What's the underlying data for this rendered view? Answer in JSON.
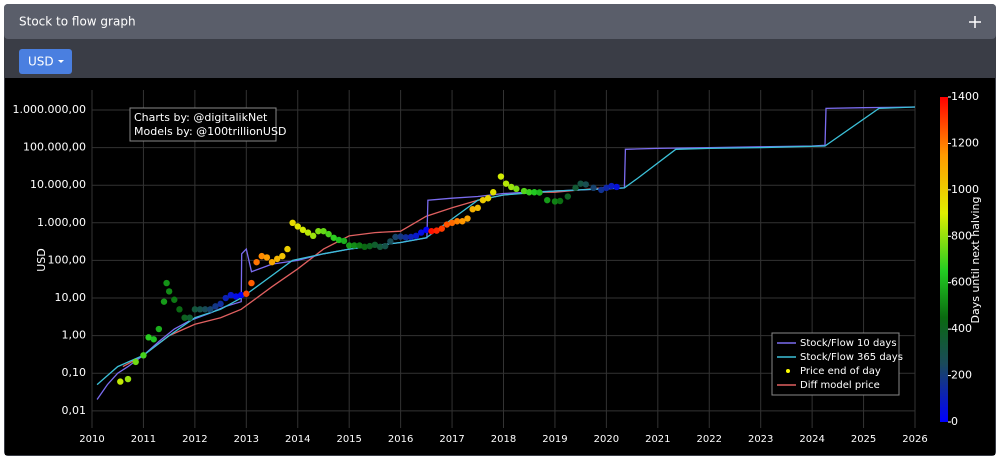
{
  "panel": {
    "title": "Stock to flow graph",
    "button": "USD"
  },
  "chart_data": {
    "type": "line",
    "ylabel": "USD",
    "log_y": true,
    "grid": true,
    "legend_position": "lower right",
    "annotations": [
      "Charts by: @digitalikNet",
      "Models by: @100trillionUSD"
    ],
    "xlim": [
      2010,
      2026
    ],
    "xticks": [
      2010,
      2011,
      2012,
      2013,
      2014,
      2015,
      2016,
      2017,
      2018,
      2019,
      2020,
      2021,
      2022,
      2023,
      2024,
      2025,
      2026
    ],
    "ylim": [
      0.0035,
      3400000
    ],
    "yticks": [
      {
        "value": 0.01,
        "label": "0,01"
      },
      {
        "value": 0.1,
        "label": "0,10"
      },
      {
        "value": 1,
        "label": "1,00"
      },
      {
        "value": 10,
        "label": "10,00"
      },
      {
        "value": 100,
        "label": "100,00"
      },
      {
        "value": 1000,
        "label": "1.000,00"
      },
      {
        "value": 10000,
        "label": "10.000,00"
      },
      {
        "value": 100000,
        "label": "100.000,00"
      },
      {
        "value": 1000000,
        "label": "1.000.000,00"
      }
    ],
    "colorbar": {
      "label": "Days until next halving",
      "lim": [
        0,
        1400
      ],
      "ticks": [
        0,
        200,
        400,
        600,
        800,
        1000,
        1200,
        1400
      ],
      "colorscale": [
        [
          0,
          "#0000ff"
        ],
        [
          250,
          "#1a4a5a"
        ],
        [
          450,
          "#0a6a10"
        ],
        [
          650,
          "#22cc22"
        ],
        [
          900,
          "#e0ee00"
        ],
        [
          1150,
          "#ff9900"
        ],
        [
          1400,
          "#ff0000"
        ]
      ]
    },
    "series": [
      {
        "name": "Stock/Flow 10 days",
        "kind": "line",
        "color": "#7b6cf0",
        "x": [
          2010.1,
          2010.3,
          2010.5,
          2010.7,
          2011,
          2011.3,
          2011.6,
          2011.9,
          2012.3,
          2012.6,
          2012.9,
          2012.91,
          2013,
          2013.1,
          2013.5,
          2014,
          2014.5,
          2015,
          2015.5,
          2016,
          2016.51,
          2016.53,
          2017,
          2017.5,
          2018,
          2018.5,
          2019,
          2019.5,
          2020,
          2020.35,
          2020.37,
          2021,
          2022,
          2023,
          2024,
          2024.25,
          2024.27,
          2025,
          2026
        ],
        "values": [
          0.02,
          0.05,
          0.1,
          0.15,
          0.3,
          0.7,
          1.5,
          2.5,
          4,
          6,
          8,
          150,
          200,
          50,
          80,
          100,
          150,
          200,
          250,
          300,
          400,
          4000,
          4500,
          5000,
          6000,
          6500,
          7000,
          7500,
          8000,
          8500,
          90000,
          95000,
          100000,
          105000,
          110000,
          115000,
          1100000,
          1150000,
          1200000
        ]
      },
      {
        "name": "Stock/Flow 365 days",
        "kind": "line",
        "color": "#3cc0d8",
        "x": [
          2010.1,
          2010.5,
          2011,
          2011.5,
          2012,
          2012.5,
          2012.9,
          2013.9,
          2014.5,
          2015,
          2016,
          2016.5,
          2017.5,
          2018,
          2019,
          2020.35,
          2020.6,
          2021.35,
          2022,
          2023,
          2024.25,
          2025.3,
          2026
        ],
        "values": [
          0.05,
          0.15,
          0.3,
          1,
          3,
          5,
          10,
          100,
          150,
          200,
          300,
          400,
          4000,
          5500,
          7000,
          8500,
          15000,
          90000,
          95000,
          100000,
          110000,
          1100000,
          1200000
        ]
      },
      {
        "name": "Price end of day",
        "kind": "scatter",
        "color": "#ffff00",
        "x": [
          2010.55,
          2010.7,
          2010.85,
          2011,
          2011.1,
          2011.2,
          2011.3,
          2011.4,
          2011.45,
          2011.5,
          2011.6,
          2011.7,
          2011.8,
          2011.9,
          2012,
          2012.1,
          2012.2,
          2012.3,
          2012.4,
          2012.5,
          2012.6,
          2012.7,
          2012.8,
          2012.9,
          2013,
          2013.1,
          2013.2,
          2013.3,
          2013.4,
          2013.5,
          2013.6,
          2013.7,
          2013.8,
          2013.9,
          2014,
          2014.1,
          2014.2,
          2014.3,
          2014.4,
          2014.5,
          2014.6,
          2014.7,
          2014.8,
          2014.9,
          2015,
          2015.1,
          2015.2,
          2015.3,
          2015.4,
          2015.5,
          2015.6,
          2015.7,
          2015.8,
          2015.9,
          2016,
          2016.1,
          2016.2,
          2016.3,
          2016.4,
          2016.5,
          2016.6,
          2016.7,
          2016.8,
          2016.9,
          2017,
          2017.1,
          2017.2,
          2017.3,
          2017.4,
          2017.5,
          2017.6,
          2017.7,
          2017.8,
          2017.95,
          2018.05,
          2018.15,
          2018.25,
          2018.4,
          2018.5,
          2018.6,
          2018.7,
          2018.85,
          2019,
          2019.1,
          2019.25,
          2019.4,
          2019.5,
          2019.6,
          2019.75,
          2019.9,
          2020,
          2020.1,
          2020.2
        ],
        "values": [
          0.06,
          0.07,
          0.2,
          0.3,
          0.9,
          0.8,
          1.5,
          8,
          25,
          15,
          9,
          5,
          3,
          3,
          5,
          5,
          5,
          5,
          6,
          7,
          10,
          12,
          11,
          12,
          13,
          25,
          90,
          130,
          120,
          90,
          110,
          130,
          200,
          1000,
          800,
          650,
          550,
          450,
          600,
          600,
          500,
          400,
          350,
          330,
          250,
          250,
          250,
          230,
          240,
          260,
          230,
          240,
          320,
          420,
          430,
          410,
          420,
          450,
          550,
          650,
          600,
          620,
          700,
          900,
          1000,
          1100,
          1100,
          1300,
          2300,
          2500,
          4000,
          4500,
          6500,
          17000,
          11000,
          9000,
          8000,
          7000,
          6500,
          6500,
          6400,
          4000,
          3700,
          3800,
          5000,
          8500,
          11000,
          10500,
          8500,
          7500,
          8500,
          9500,
          9000
        ],
        "color_values": [
          861,
          807,
          752,
          697,
          661,
          624,
          588,
          551,
          533,
          515,
          478,
          442,
          405,
          369,
          332,
          296,
          259,
          223,
          186,
          150,
          113,
          77,
          40,
          4,
          1285,
          1248,
          1212,
          1175,
          1139,
          1102,
          1066,
          1029,
          993,
          956,
          920,
          883,
          847,
          810,
          774,
          737,
          701,
          664,
          628,
          591,
          555,
          518,
          482,
          445,
          409,
          372,
          336,
          299,
          263,
          226,
          190,
          153,
          117,
          80,
          44,
          7,
          1372,
          1336,
          1299,
          1263,
          1226,
          1190,
          1153,
          1117,
          1080,
          1044,
          1007,
          971,
          934,
          880,
          843,
          807,
          770,
          716,
          679,
          642,
          606,
          551,
          496,
          460,
          405,
          350,
          314,
          277,
          223,
          168,
          131,
          95,
          58
        ]
      },
      {
        "name": "Diff model price",
        "kind": "line",
        "color": "#e06060",
        "x": [
          2010.6,
          2011,
          2011.5,
          2012,
          2012.5,
          2012.9,
          2013.5,
          2014,
          2014.5,
          2015,
          2015.5,
          2016,
          2016.5,
          2017,
          2017.5,
          2018,
          2018.5,
          2019,
          2019.5,
          2020.1
        ],
        "values": [
          0.15,
          0.3,
          1,
          2,
          3,
          5,
          20,
          60,
          200,
          450,
          550,
          600,
          1500,
          2500,
          4000,
          5500,
          6500,
          6500,
          7500,
          9000
        ]
      }
    ]
  }
}
